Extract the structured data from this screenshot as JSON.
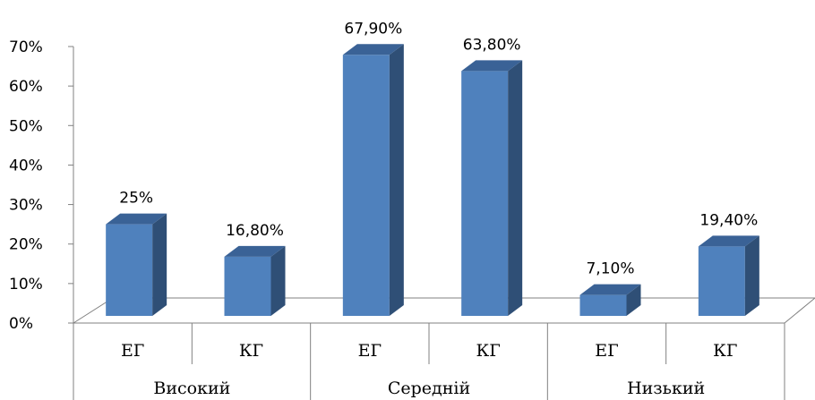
{
  "chart_data": {
    "type": "bar",
    "title": "",
    "xlabel": "",
    "ylabel": "",
    "ylim": [
      0,
      70
    ],
    "yticks": [
      "0%",
      "10%",
      "20%",
      "30%",
      "40%",
      "50%",
      "60%",
      "70%"
    ],
    "groups": [
      {
        "label": "Високий",
        "bars": [
          {
            "label": "ЕГ",
            "value": 25,
            "text": "25%"
          },
          {
            "label": "КГ",
            "value": 16.8,
            "text": "16,80%"
          }
        ]
      },
      {
        "label": "Середній",
        "bars": [
          {
            "label": "ЕГ",
            "value": 67.9,
            "text": "67,90%"
          },
          {
            "label": "КГ",
            "value": 63.8,
            "text": "63,80%"
          }
        ]
      },
      {
        "label": "Низький",
        "bars": [
          {
            "label": "ЕГ",
            "value": 7.1,
            "text": "7,10%"
          },
          {
            "label": "КГ",
            "value": 19.4,
            "text": "19,40%"
          }
        ]
      }
    ],
    "grid": false,
    "style": "3d-column",
    "colors": {
      "front": "#4f81bd",
      "side": "#2f4f76",
      "top": "#3a6296",
      "axis": "#808080"
    }
  }
}
